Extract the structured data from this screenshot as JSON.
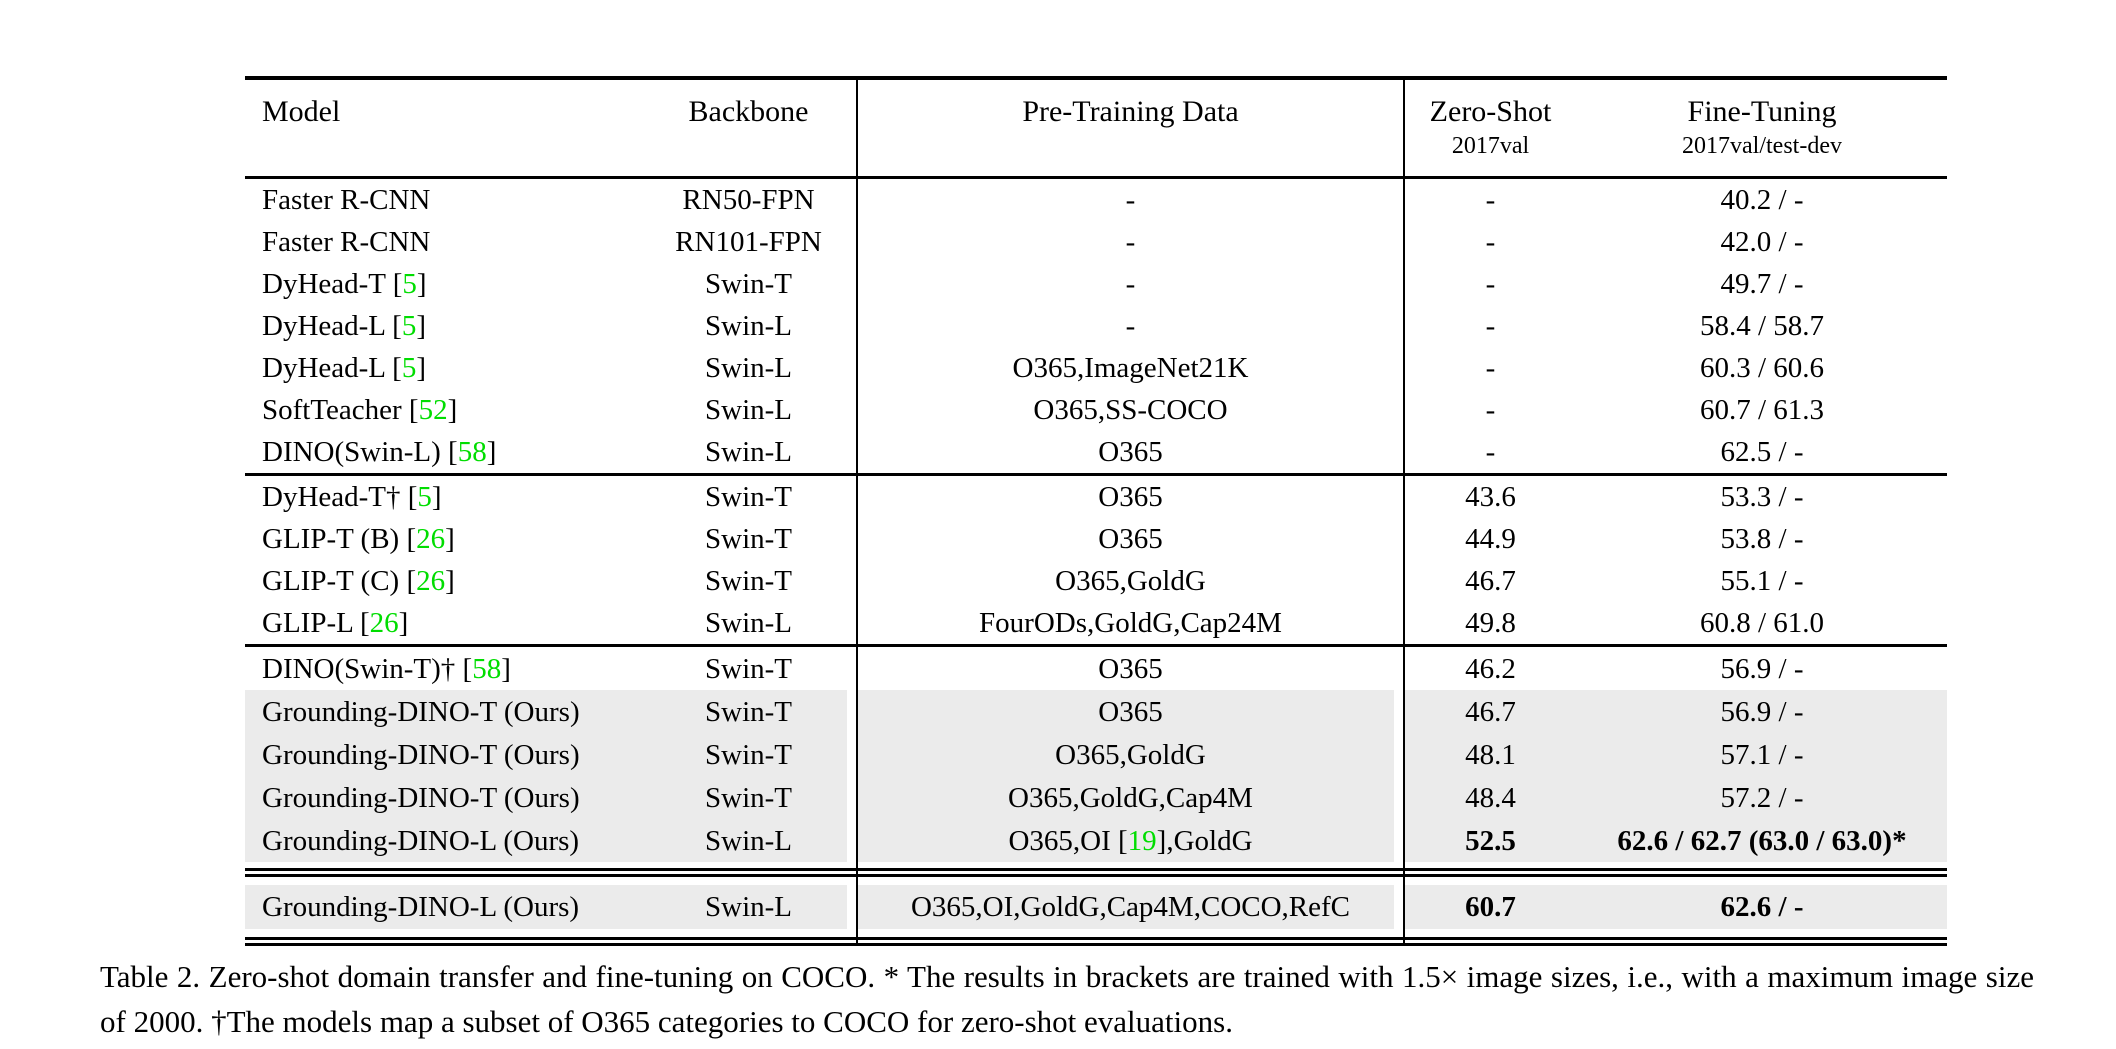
{
  "colors": {
    "cite_green": "#00dd00",
    "row_highlight": "#ebebeb",
    "text": "#000000"
  },
  "header": {
    "model": "Model",
    "backbone": "Backbone",
    "pretraining": "Pre-Training Data",
    "zeroshot_title": "Zero-Shot",
    "zeroshot_sub": "2017val",
    "finetuning_title": "Fine-Tuning",
    "finetuning_sub": "2017val/test-dev"
  },
  "groups": [
    {
      "rows": [
        {
          "model": "Faster R-CNN",
          "backbone": "RN50-FPN",
          "pretrain": "-",
          "zeroshot": "-",
          "finetune": "40.2 / -"
        },
        {
          "model": "Faster R-CNN",
          "backbone": "RN101-FPN",
          "pretrain": "-",
          "zeroshot": "-",
          "finetune": "42.0 / -"
        },
        {
          "model": "DyHead-T [5]",
          "cite": "5",
          "backbone": "Swin-T",
          "pretrain": "-",
          "zeroshot": "-",
          "finetune": "49.7 / -"
        },
        {
          "model": "DyHead-L [5]",
          "cite": "5",
          "backbone": "Swin-L",
          "pretrain": "-",
          "zeroshot": "-",
          "finetune": "58.4 / 58.7"
        },
        {
          "model": "DyHead-L [5]",
          "cite": "5",
          "backbone": "Swin-L",
          "pretrain": "O365,ImageNet21K",
          "zeroshot": "-",
          "finetune": "60.3 / 60.6"
        },
        {
          "model": "SoftTeacher [52]",
          "cite": "52",
          "backbone": "Swin-L",
          "pretrain": "O365,SS-COCO",
          "zeroshot": "-",
          "finetune": "60.7 / 61.3"
        },
        {
          "model": "DINO(Swin-L) [58]",
          "cite": "58",
          "backbone": "Swin-L",
          "pretrain": "O365",
          "zeroshot": "-",
          "finetune": "62.5 / -"
        }
      ]
    },
    {
      "rows": [
        {
          "model": "DyHead-T† [5]",
          "cite": "5",
          "backbone": "Swin-T",
          "pretrain": "O365",
          "zeroshot": "43.6",
          "finetune": "53.3 / -"
        },
        {
          "model": "GLIP-T (B) [26]",
          "cite": "26",
          "backbone": "Swin-T",
          "pretrain": "O365",
          "zeroshot": "44.9",
          "finetune": "53.8 / -"
        },
        {
          "model": "GLIP-T (C) [26]",
          "cite": "26",
          "backbone": "Swin-T",
          "pretrain": "O365,GoldG",
          "zeroshot": "46.7",
          "finetune": "55.1 / -"
        },
        {
          "model": "GLIP-L [26]",
          "cite": "26",
          "backbone": "Swin-L",
          "pretrain": "FourODs,GoldG,Cap24M",
          "zeroshot": "49.8",
          "finetune": "60.8 / 61.0"
        }
      ]
    },
    {
      "rows": [
        {
          "model": "DINO(Swin-T)† [58]",
          "cite": "58",
          "backbone": "Swin-T",
          "pretrain": "O365",
          "zeroshot": "46.2",
          "finetune": "56.9 / -"
        },
        {
          "model": "Grounding-DINO-T (Ours)",
          "backbone": "Swin-T",
          "pretrain": "O365",
          "zeroshot": "46.7",
          "finetune": "56.9 / -",
          "highlight": true
        },
        {
          "model": "Grounding-DINO-T (Ours)",
          "backbone": "Swin-T",
          "pretrain": "O365,GoldG",
          "zeroshot": "48.1",
          "finetune": "57.1 / -",
          "highlight": true
        },
        {
          "model": "Grounding-DINO-T (Ours)",
          "backbone": "Swin-T",
          "pretrain": "O365,GoldG,Cap4M",
          "zeroshot": "48.4",
          "finetune": "57.2 / -",
          "highlight": true
        },
        {
          "model": "Grounding-DINO-L (Ours)",
          "backbone": "Swin-L",
          "pretrain": "O365,OI [19],GoldG",
          "pretrain_cite": "19",
          "zeroshot": "52.5",
          "finetune": "62.6 / 62.7 (63.0 / 63.0)*",
          "highlight": true,
          "bold": true
        }
      ]
    },
    {
      "rows": [
        {
          "model": "Grounding-DINO-L (Ours)",
          "backbone": "Swin-L",
          "pretrain": "O365,OI,GoldG,Cap4M,COCO,RefC",
          "zeroshot": "60.7",
          "finetune": "62.6 / -",
          "highlight": true,
          "bold": true
        }
      ]
    }
  ],
  "caption": "Table 2.  Zero-shot domain transfer and fine-tuning on COCO. * The results in brackets are trained with 1.5× image sizes, i.e., with a maximum image size of 2000. †The models map a subset of O365 categories to COCO for zero-shot evaluations."
}
